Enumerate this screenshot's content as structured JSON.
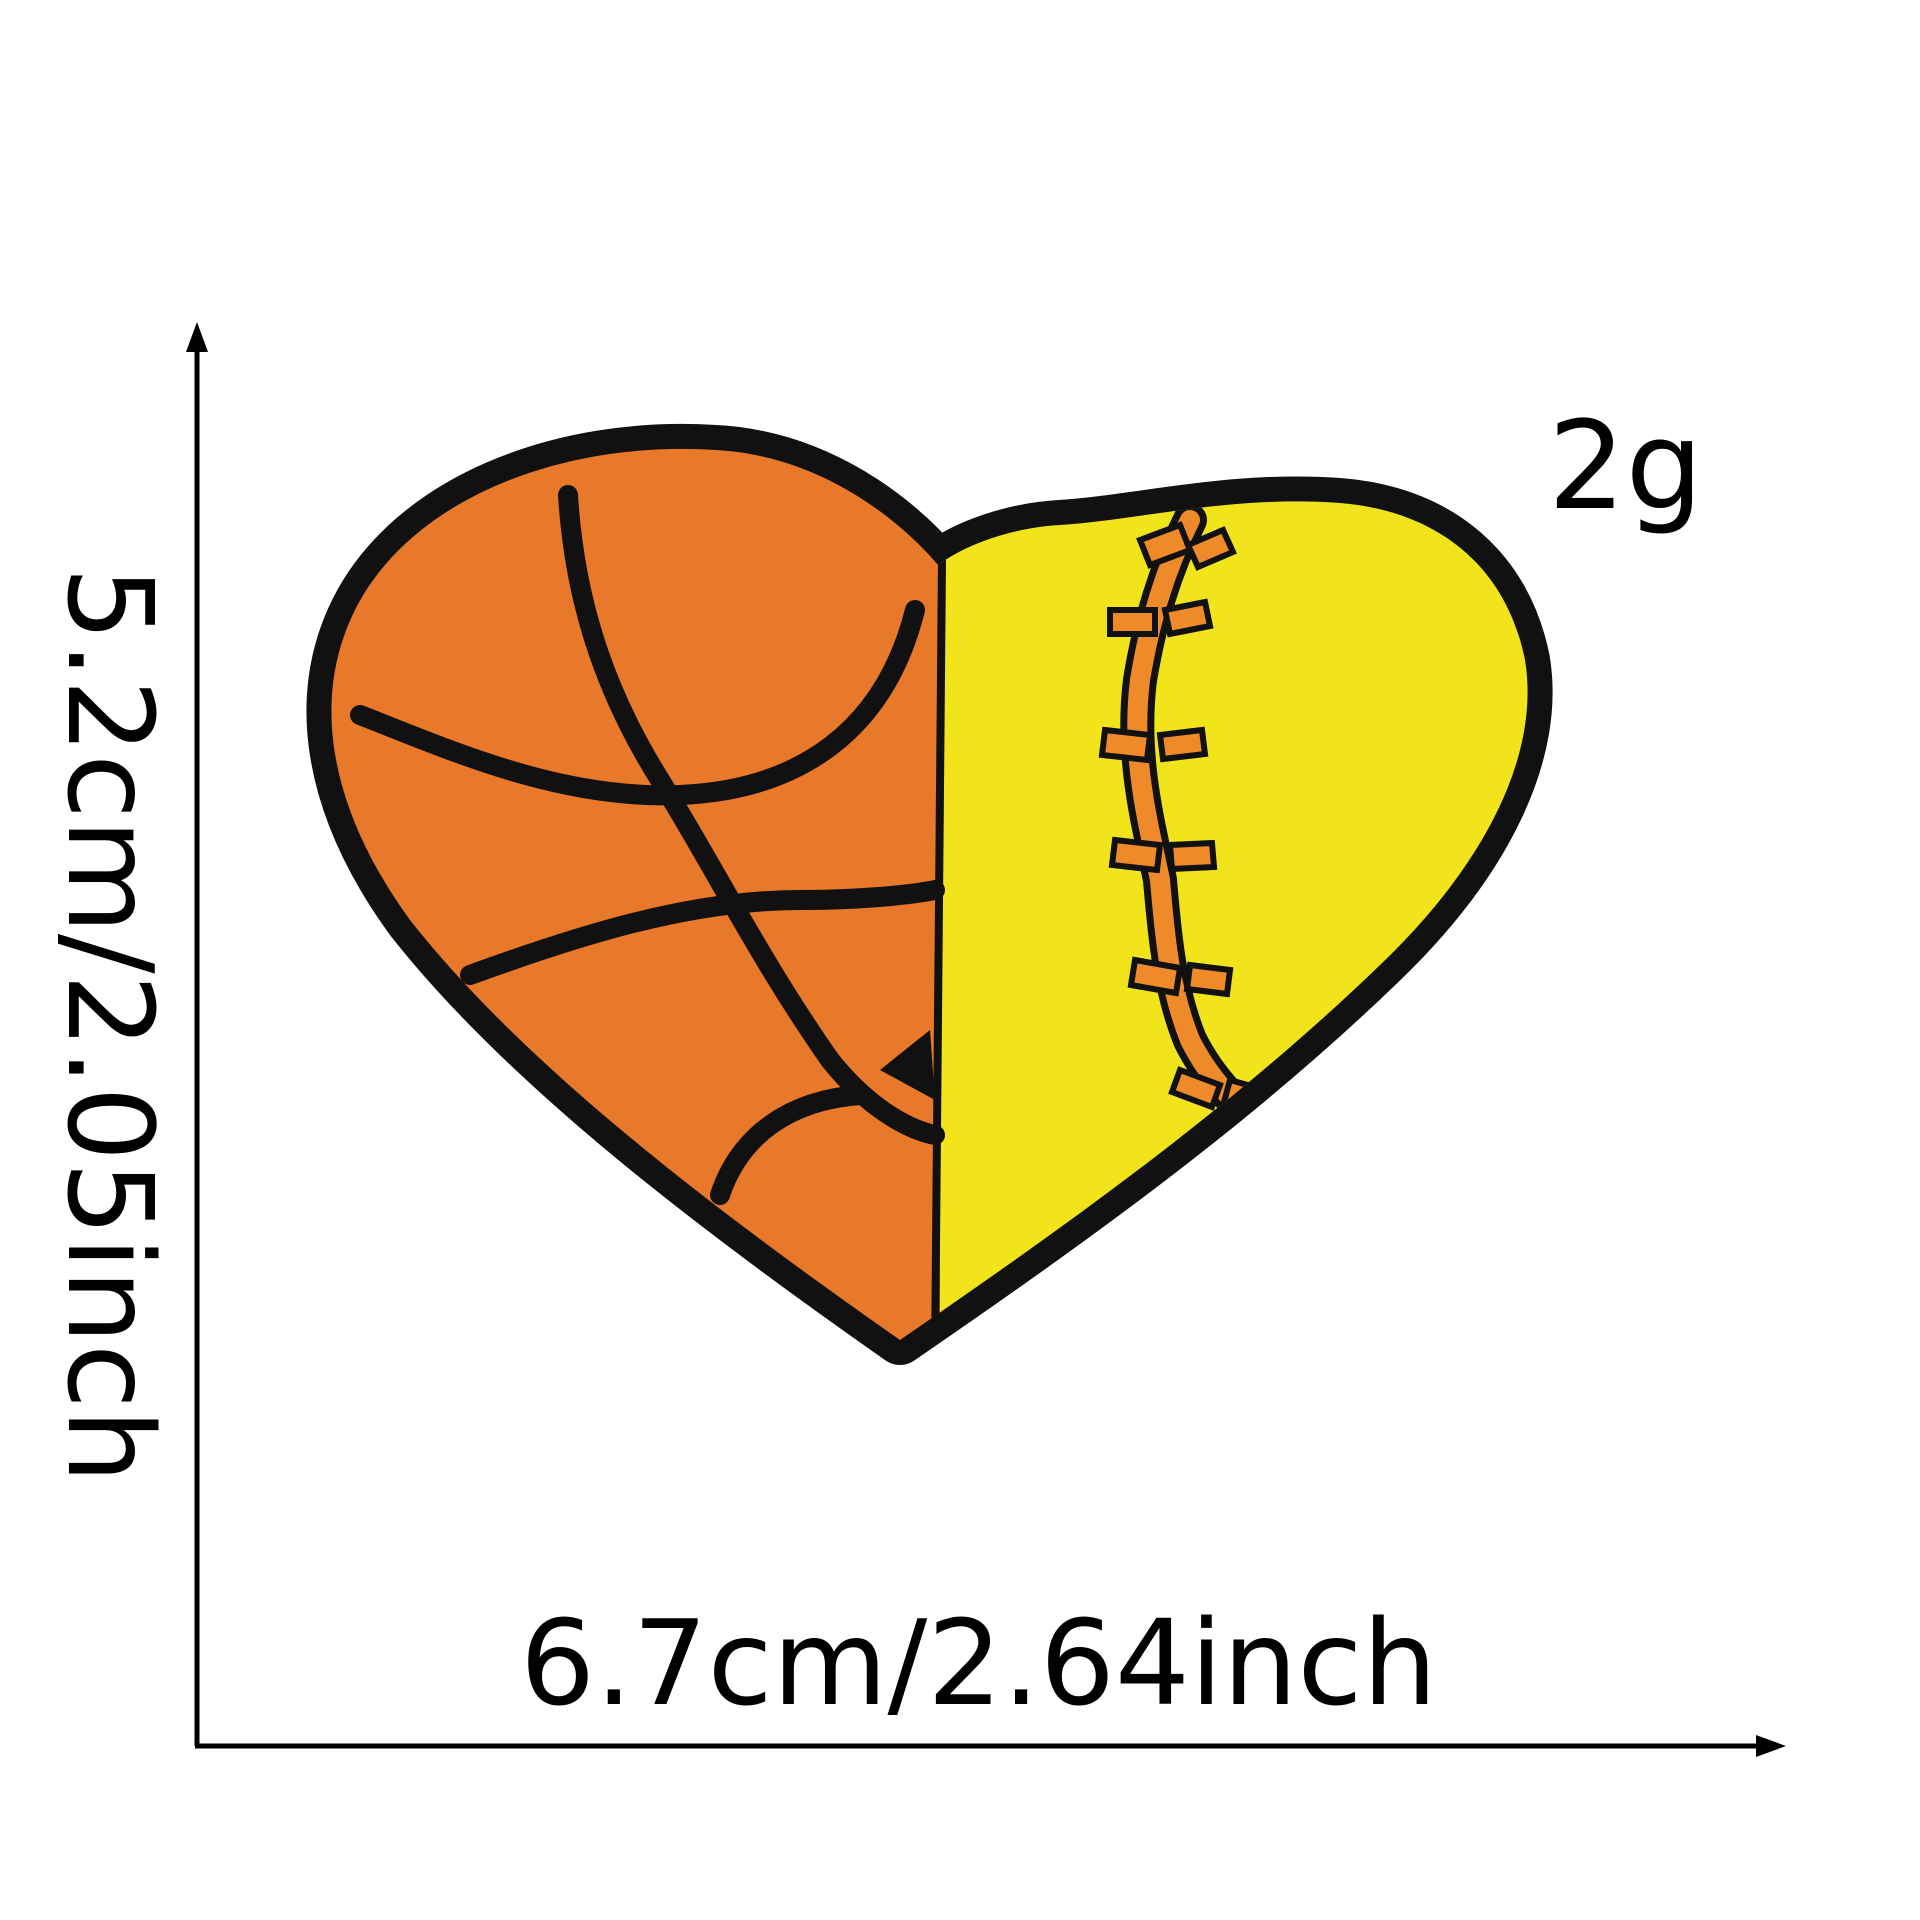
{
  "labels": {
    "weight": "2g",
    "width": "6.7cm/2.64inch",
    "height": "5.2cm/2.05inch"
  },
  "colors": {
    "background": "#ffffff",
    "outline": "#111111",
    "basketball": "#e8782a",
    "softball": "#f2e41a",
    "seam": "#ef8a2a"
  },
  "icons": {
    "patch": "basketball-softball-heart-icon"
  }
}
